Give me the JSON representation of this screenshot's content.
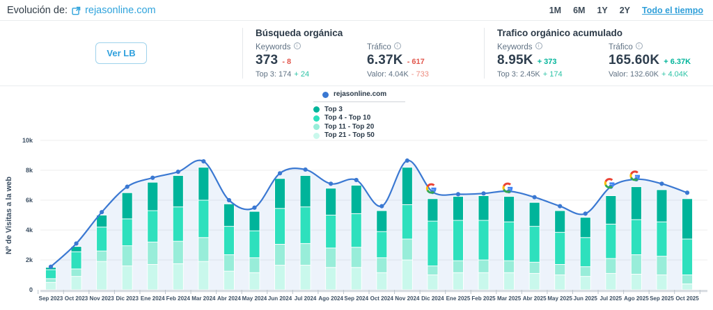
{
  "header": {
    "title_prefix": "Evolución de:",
    "domain": "rejasonline.com",
    "ranges": [
      "1M",
      "6M",
      "1Y",
      "2Y"
    ],
    "range_all_label": "Todo el tiempo"
  },
  "toolbar": {
    "ver_lb_label": "Ver LB"
  },
  "panels": {
    "organic_search": {
      "title": "Búsqueda orgánica",
      "keywords": {
        "label": "Keywords",
        "value": "373",
        "delta": "- 8",
        "sub_label": "Top 3: 174",
        "sub_delta": "+ 24"
      },
      "traffic": {
        "label": "Tráfico",
        "value": "6.37K",
        "delta": "- 617",
        "sub_label": "Valor: 4.04K",
        "sub_delta": "- 733"
      }
    },
    "organic_accumulated": {
      "title": "Trafico orgánico acumulado",
      "keywords": {
        "label": "Keywords",
        "value": "8.95K",
        "delta": "+ 373",
        "sub_label": "Top 3: 2.45K",
        "sub_delta": "+ 174"
      },
      "traffic": {
        "label": "Tráfico",
        "value": "165.60K",
        "delta": "+ 6.37K",
        "sub_label": "Valor: 132.60K",
        "sub_delta": "+ 4.04K"
      }
    }
  },
  "colors": {
    "accent_blue": "#2fa3dc",
    "line_blue": "#3a78d2",
    "area_fill": "#3a78d2",
    "delta_negative": "#e2574d",
    "delta_positive": "#00b49a",
    "grid": "#ececee",
    "axis_text": "#3c4f63",
    "axis_band": "#d9dde2"
  },
  "chart_data": {
    "type": "bar",
    "subtype": "stacked-bars-with-line-overlay",
    "title": "",
    "xlabel": "",
    "ylabel": "Nº de Visitas a la web",
    "ylim": [
      0,
      10000
    ],
    "yticks": [
      0,
      2000,
      4000,
      6000,
      8000,
      10000
    ],
    "ytick_labels": [
      "0",
      "2k",
      "4k",
      "6k",
      "8k",
      "10k"
    ],
    "grid": true,
    "legend_position": "top-center",
    "categories": [
      "Sep 2023",
      "Oct 2023",
      "Nov 2023",
      "Dic 2023",
      "Ene 2024",
      "Feb 2024",
      "Mar 2024",
      "Abr 2024",
      "May 2024",
      "Jun 2024",
      "Jul 2024",
      "Ago 2024",
      "Sep 2024",
      "Oct 2024",
      "Nov 2024",
      "Dic 2024",
      "Ene 2025",
      "Feb 2025",
      "Mar 2025",
      "Abr 2025",
      "May 2025",
      "Jun 2025",
      "Jul 2025",
      "Ago 2025",
      "Sep 2025",
      "Oct 2025"
    ],
    "line_series": {
      "name": "rejasonline.com",
      "color": "#3a78d2",
      "values": [
        1550,
        3100,
        5200,
        6900,
        7500,
        7900,
        8600,
        6000,
        5500,
        7800,
        8050,
        7100,
        7350,
        5600,
        8650,
        6550,
        6400,
        6450,
        6600,
        6200,
        5600,
        5100,
        6900,
        7400,
        7100,
        6500
      ]
    },
    "bar_series": [
      {
        "name": "Top 3",
        "color": "#00b49a",
        "values": [
          150,
          350,
          800,
          1750,
          1900,
          2100,
          2200,
          1500,
          1300,
          2000,
          2100,
          1800,
          1900,
          1400,
          2500,
          1500,
          1600,
          1650,
          1700,
          1600,
          1450,
          1350,
          1900,
          2200,
          2150,
          2700
        ]
      },
      {
        "name": "Top 4 - Top 10",
        "color": "#2ee0bd",
        "values": [
          600,
          1150,
          1600,
          1800,
          2100,
          2300,
          2500,
          1900,
          1800,
          2400,
          2450,
          2200,
          2250,
          1750,
          2300,
          3000,
          2700,
          2650,
          2600,
          2400,
          2150,
          1950,
          2300,
          2350,
          2300,
          2400
        ]
      },
      {
        "name": "Top 11 - Top 20",
        "color": "#98edd9",
        "values": [
          250,
          500,
          700,
          1350,
          1500,
          1500,
          1600,
          1100,
          1000,
          1400,
          1450,
          1300,
          1350,
          1000,
          1400,
          600,
          800,
          850,
          800,
          750,
          700,
          650,
          1000,
          1300,
          1250,
          600
        ]
      },
      {
        "name": "Top 21 - Top 50",
        "color": "#c9f8ec",
        "values": [
          500,
          900,
          1900,
          1600,
          1700,
          1750,
          1900,
          1250,
          1150,
          1650,
          1650,
          1500,
          1500,
          1150,
          2000,
          1000,
          1150,
          1150,
          1150,
          1100,
          1000,
          900,
          1100,
          1050,
          1000,
          400
        ]
      }
    ],
    "google_update_indices": [
      15,
      18,
      22,
      23
    ],
    "google_update_label": "Google update"
  }
}
